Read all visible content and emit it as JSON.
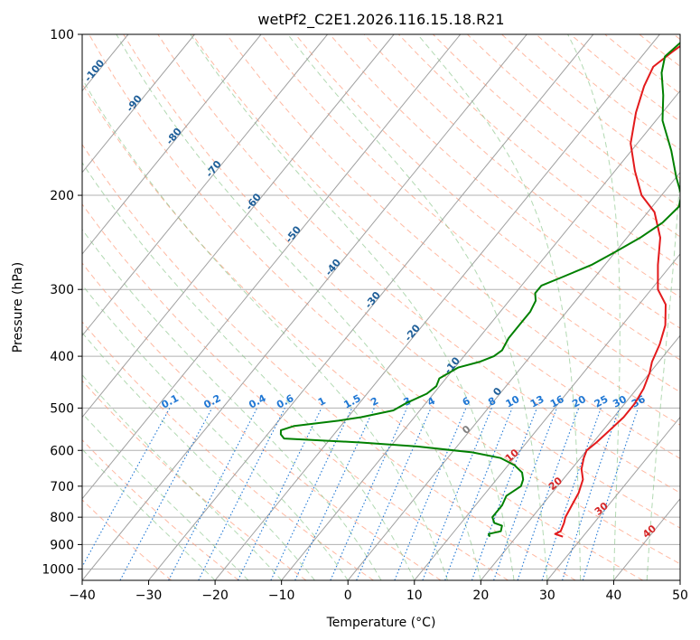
{
  "chart_data": {
    "type": "line",
    "title": "wetPf2_C2E1.2026.116.15.18.R21",
    "xlabel": "Temperature (°C)",
    "ylabel": "Pressure (hPa)",
    "xlim": [
      -40,
      50
    ],
    "ylim": [
      1050,
      100
    ],
    "y_scale": "log",
    "x_ticks": [
      "−40",
      "−30",
      "−20",
      "−10",
      "0",
      "10",
      "20",
      "30",
      "40",
      "50"
    ],
    "y_ticks": [
      "100",
      "200",
      "300",
      "400",
      "500",
      "600",
      "700",
      "800",
      "900",
      "1000"
    ],
    "grid": true,
    "series": [
      {
        "color": "#e31a1c",
        "note_role": "temperature",
        "points": [
          [
            27,
            870
          ],
          [
            25.5,
            860
          ],
          [
            26,
            850
          ],
          [
            25.5,
            820
          ],
          [
            25,
            800
          ],
          [
            24.5,
            760
          ],
          [
            24,
            720
          ],
          [
            23,
            680
          ],
          [
            21.5,
            650
          ],
          [
            20.5,
            620
          ],
          [
            20,
            600
          ],
          [
            20.5,
            580
          ],
          [
            21,
            550
          ],
          [
            21.5,
            520
          ],
          [
            21.5,
            490
          ],
          [
            21,
            460
          ],
          [
            20,
            430
          ],
          [
            19,
            410
          ],
          [
            18,
            380
          ],
          [
            16.5,
            350
          ],
          [
            14,
            320
          ],
          [
            11,
            300
          ],
          [
            8,
            270
          ],
          [
            5,
            240
          ],
          [
            1,
            215
          ],
          [
            -3,
            200
          ],
          [
            -7,
            180
          ],
          [
            -11,
            160
          ],
          [
            -14,
            140
          ],
          [
            -16,
            125
          ],
          [
            -17,
            115
          ],
          [
            -16,
            108
          ],
          [
            -14.5,
            100
          ]
        ]
      },
      {
        "color": "#008000",
        "note_role": "dewpoint",
        "points": [
          [
            16,
            870
          ],
          [
            15.5,
            860
          ],
          [
            17,
            850
          ],
          [
            16.5,
            830
          ],
          [
            15,
            820
          ],
          [
            14,
            800
          ],
          [
            14,
            760
          ],
          [
            13.5,
            730
          ],
          [
            14.5,
            700
          ],
          [
            14,
            680
          ],
          [
            13,
            660
          ],
          [
            11,
            640
          ],
          [
            8,
            620
          ],
          [
            3,
            605
          ],
          [
            -6,
            590
          ],
          [
            -15,
            580
          ],
          [
            -27,
            570
          ],
          [
            -28,
            560
          ],
          [
            -28.5,
            550
          ],
          [
            -27,
            540
          ],
          [
            -21,
            528
          ],
          [
            -18,
            520
          ],
          [
            -14,
            505
          ],
          [
            -13,
            490
          ],
          [
            -11,
            470
          ],
          [
            -10.5,
            455
          ],
          [
            -11,
            440
          ],
          [
            -9.5,
            420
          ],
          [
            -7,
            410
          ],
          [
            -5.5,
            400
          ],
          [
            -5,
            390
          ],
          [
            -5.5,
            370
          ],
          [
            -5.5,
            350
          ],
          [
            -5.5,
            330
          ],
          [
            -6,
            315
          ],
          [
            -7,
            305
          ],
          [
            -7,
            295
          ],
          [
            -5,
            285
          ],
          [
            -2,
            270
          ],
          [
            0,
            255
          ],
          [
            2,
            240
          ],
          [
            3.5,
            225
          ],
          [
            4,
            210
          ],
          [
            3,
            200
          ],
          [
            0,
            185
          ],
          [
            -4,
            165
          ],
          [
            -9,
            145
          ],
          [
            -12,
            130
          ],
          [
            -15,
            118
          ],
          [
            -16.5,
            110
          ],
          [
            -16,
            105
          ],
          [
            -15.5,
            100
          ]
        ]
      }
    ],
    "background_lines": {
      "isotherms_color": "#a0a0a0",
      "dry_adiabats_color": "#ff9b7a",
      "moist_adiabats_color": "#7fbf7f",
      "mixing_ratio_color": "#1f77d4",
      "isotherm_labels": [
        "-100",
        "-90",
        "-80",
        "-70",
        "-60",
        "-50",
        "-40",
        "-30",
        "-20",
        "-10",
        "0"
      ],
      "isotherm_label_color": "#1f5f99",
      "mixing_ratio_labels": [
        "0.1",
        "0.2",
        "0.4",
        "0.6",
        "1",
        "1.5",
        "2",
        "3",
        "4",
        "6",
        "8",
        "10",
        "13",
        "16",
        "20",
        "25",
        "30",
        "36"
      ],
      "dry_adiabat_labels": [
        "10",
        "20",
        "30",
        "40"
      ],
      "dry_adiabat_label_color": "#d62728",
      "zero_label": "0"
    }
  }
}
